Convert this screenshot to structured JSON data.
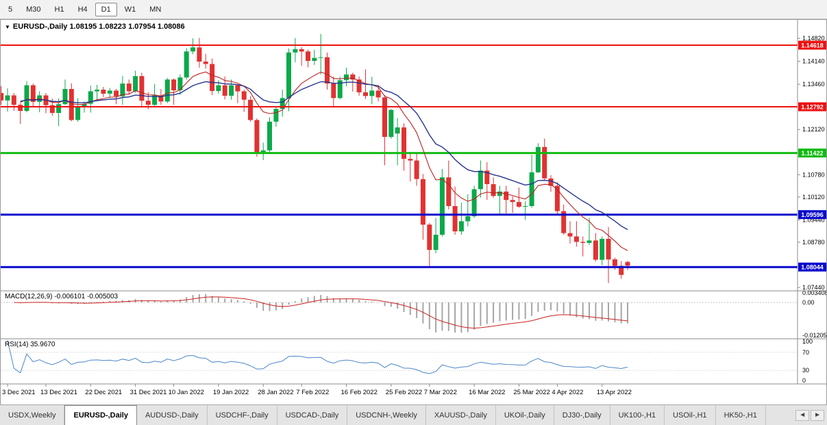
{
  "toolbar": {
    "timeframes": [
      "5",
      "M30",
      "H1",
      "H4",
      "D1",
      "W1",
      "MN"
    ],
    "active": "D1"
  },
  "chart": {
    "title": "EURUSD-,Daily 1.08195 1.08223 1.07954 1.08086",
    "symbol": "EURUSD-,Daily",
    "ohlc_display": {
      "open": "1.08195",
      "high": "1.08223",
      "low": "1.07954",
      "close": "1.08086"
    },
    "price_ticks": [
      "1.14820",
      "1.14140",
      "1.13460",
      "1.12120",
      "1.10780",
      "1.10120",
      "1.09440",
      "1.08780",
      "1.07440"
    ],
    "hlines": [
      {
        "price": 1.14618,
        "label": "1.14618",
        "color": "#ee1111",
        "width": 2
      },
      {
        "price": 1.12792,
        "label": "1.12792",
        "color": "#ee1111",
        "width": 2
      },
      {
        "price": 1.11422,
        "label": "1.11422",
        "color": "#12bb12",
        "width": 3
      },
      {
        "price": 1.09596,
        "label": "1.09596",
        "color": "#0a0acd",
        "width": 3
      },
      {
        "price": 1.08044,
        "label": "1.08044",
        "color": "#0a0acd",
        "width": 3
      }
    ],
    "colors": {
      "up": "#0ba94a",
      "down": "#e03232",
      "ma_fast": "#bb2222",
      "ma_slow": "#26338f"
    }
  },
  "macd": {
    "label": "MACD(12,26,9) -0.006101 -0.005003",
    "name": "MACD",
    "params": "12,26,9",
    "value": "-0.006101",
    "signal_value": "-0.005003",
    "axis_ticks": [
      "0.003408",
      "0.00",
      "-0.012058"
    ],
    "hist_color": "#a6a6a6",
    "signal_color": "#cc2020"
  },
  "rsi": {
    "label": "RSI(14) 35.9670",
    "name": "RSI",
    "params": "14",
    "value": "35.9670",
    "axis_ticks": [
      "100",
      "70",
      "30",
      "0"
    ],
    "levels": [
      70,
      30
    ],
    "color": "#4a86c8"
  },
  "date_labels": [
    [
      "3 Dec 2021",
      1
    ],
    [
      "13 Dec 2021",
      7
    ],
    [
      "22 Dec 2021",
      14
    ],
    [
      "31 Dec 2021",
      21
    ],
    [
      "10 Jan 2022",
      27
    ],
    [
      "19 Jan 2022",
      34
    ],
    [
      "28 Jan 2022",
      41
    ],
    [
      "7 Feb 2022",
      47
    ],
    [
      "16 Feb 2022",
      54
    ],
    [
      "25 Feb 2022",
      61
    ],
    [
      "7 Mar 2022",
      67
    ],
    [
      "16 Mar 2022",
      74
    ],
    [
      "25 Mar 2022",
      81
    ],
    [
      "4 Apr 2022",
      87
    ],
    [
      "13 Apr 2022",
      94
    ]
  ],
  "tabs": {
    "items": [
      "USDX,Weekly",
      "EURUSD-,Daily",
      "AUDUSD-,Daily",
      "USDCHF-,Daily",
      "USDCAD-,Daily",
      "USDCNH-,Weekly",
      "XAUUSD-,Daily",
      "UKOil-,Daily",
      "DJ30-,Daily",
      "UK100-,H1",
      "USOil-,H1",
      "HK50-,H1"
    ],
    "active": "EURUSD-,Daily",
    "scroll_left": "◄",
    "scroll_right": "►"
  },
  "chart_data": {
    "type": "candlestick",
    "symbol": "EURUSD",
    "timeframe": "Daily",
    "moving_averages": [
      {
        "period": 10,
        "color": "#bb2222"
      },
      {
        "period": 21,
        "color": "#26338f"
      }
    ],
    "indicators": [
      {
        "type": "MACD",
        "fast": 12,
        "slow": 26,
        "signal": 9
      },
      {
        "type": "RSI",
        "period": 14
      }
    ],
    "ohlc": [
      [
        "2021-12-02",
        1.132,
        1.134,
        1.1285,
        1.1298
      ],
      [
        "2021-12-03",
        1.1298,
        1.1334,
        1.1265,
        1.1313
      ],
      [
        "2021-12-06",
        1.1313,
        1.132,
        1.1267,
        1.1285
      ],
      [
        "2021-12-07",
        1.1285,
        1.129,
        1.1228,
        1.1267
      ],
      [
        "2021-12-08",
        1.1267,
        1.1355,
        1.1263,
        1.1343
      ],
      [
        "2021-12-09",
        1.1343,
        1.1348,
        1.128,
        1.1294
      ],
      [
        "2021-12-10",
        1.1294,
        1.1325,
        1.1263,
        1.1313
      ],
      [
        "2021-12-13",
        1.1313,
        1.132,
        1.126,
        1.1284
      ],
      [
        "2021-12-14",
        1.1284,
        1.1304,
        1.1253,
        1.1261
      ],
      [
        "2021-12-15",
        1.1261,
        1.1304,
        1.1222,
        1.1287
      ],
      [
        "2021-12-16",
        1.1287,
        1.136,
        1.1285,
        1.1332
      ],
      [
        "2021-12-17",
        1.1332,
        1.1349,
        1.1236,
        1.124
      ],
      [
        "2021-12-20",
        1.124,
        1.1305,
        1.1235,
        1.1278
      ],
      [
        "2021-12-21",
        1.1278,
        1.1295,
        1.1262,
        1.1288
      ],
      [
        "2021-12-22",
        1.1288,
        1.1342,
        1.1262,
        1.1325
      ],
      [
        "2021-12-23",
        1.1325,
        1.1344,
        1.13,
        1.133
      ],
      [
        "2021-12-24",
        1.133,
        1.1338,
        1.1308,
        1.1318
      ],
      [
        "2021-12-27",
        1.1318,
        1.1335,
        1.1305,
        1.1327
      ],
      [
        "2021-12-28",
        1.1327,
        1.1332,
        1.1287,
        1.131
      ],
      [
        "2021-12-29",
        1.131,
        1.137,
        1.1285,
        1.1348
      ],
      [
        "2021-12-30",
        1.1348,
        1.136,
        1.1315,
        1.1325
      ],
      [
        "2021-12-31",
        1.1325,
        1.1386,
        1.132,
        1.137
      ],
      [
        "2022-01-03",
        1.137,
        1.138,
        1.128,
        1.1297
      ],
      [
        "2022-01-04",
        1.1297,
        1.1323,
        1.1272,
        1.1285
      ],
      [
        "2022-01-05",
        1.1285,
        1.1347,
        1.128,
        1.1313
      ],
      [
        "2022-01-06",
        1.1313,
        1.1332,
        1.1285,
        1.1295
      ],
      [
        "2022-01-07",
        1.1295,
        1.1365,
        1.129,
        1.136
      ],
      [
        "2022-01-10",
        1.136,
        1.1363,
        1.1285,
        1.1328
      ],
      [
        "2022-01-11",
        1.1328,
        1.1375,
        1.1315,
        1.1366
      ],
      [
        "2022-01-12",
        1.1366,
        1.1453,
        1.136,
        1.1443
      ],
      [
        "2022-01-13",
        1.1443,
        1.1482,
        1.1435,
        1.1455
      ],
      [
        "2022-01-14",
        1.1455,
        1.1483,
        1.1395,
        1.1413
      ],
      [
        "2022-01-17",
        1.1413,
        1.1436,
        1.1392,
        1.1406
      ],
      [
        "2022-01-18",
        1.1406,
        1.1422,
        1.1314,
        1.1326
      ],
      [
        "2022-01-19",
        1.1326,
        1.1358,
        1.1318,
        1.1343
      ],
      [
        "2022-01-20",
        1.1343,
        1.1369,
        1.1301,
        1.1312
      ],
      [
        "2022-01-21",
        1.1312,
        1.136,
        1.13,
        1.1343
      ],
      [
        "2022-01-24",
        1.1343,
        1.1345,
        1.129,
        1.1325
      ],
      [
        "2022-01-25",
        1.1325,
        1.133,
        1.1264,
        1.13
      ],
      [
        "2022-01-26",
        1.13,
        1.131,
        1.1235,
        1.124
      ],
      [
        "2022-01-27",
        1.124,
        1.1245,
        1.1131,
        1.1145
      ],
      [
        "2022-01-28",
        1.1145,
        1.1173,
        1.1121,
        1.115
      ],
      [
        "2022-01-31",
        1.115,
        1.1248,
        1.114,
        1.1235
      ],
      [
        "2022-02-01",
        1.1235,
        1.1279,
        1.122,
        1.1273
      ],
      [
        "2022-02-02",
        1.1273,
        1.133,
        1.125,
        1.1305
      ],
      [
        "2022-02-03",
        1.1305,
        1.1452,
        1.1266,
        1.144
      ],
      [
        "2022-02-04",
        1.144,
        1.1483,
        1.1411,
        1.145
      ],
      [
        "2022-02-07",
        1.145,
        1.1456,
        1.14,
        1.1443
      ],
      [
        "2022-02-08",
        1.1443,
        1.1448,
        1.1396,
        1.1415
      ],
      [
        "2022-02-09",
        1.1415,
        1.1448,
        1.1403,
        1.1424
      ],
      [
        "2022-02-10",
        1.1424,
        1.1495,
        1.1375,
        1.1426
      ],
      [
        "2022-02-11",
        1.1426,
        1.144,
        1.133,
        1.1348
      ],
      [
        "2022-02-14",
        1.1348,
        1.1369,
        1.1278,
        1.1305
      ],
      [
        "2022-02-15",
        1.1305,
        1.1368,
        1.1301,
        1.1358
      ],
      [
        "2022-02-16",
        1.1358,
        1.1395,
        1.134,
        1.1375
      ],
      [
        "2022-02-17",
        1.1375,
        1.138,
        1.1324,
        1.136
      ],
      [
        "2022-02-18",
        1.136,
        1.1369,
        1.1312,
        1.1322
      ],
      [
        "2022-02-21",
        1.1322,
        1.139,
        1.1302,
        1.1311
      ],
      [
        "2022-02-22",
        1.1311,
        1.1368,
        1.1287,
        1.1327
      ],
      [
        "2022-02-23",
        1.1327,
        1.1343,
        1.1295,
        1.1307
      ],
      [
        "2022-02-24",
        1.1307,
        1.1314,
        1.1106,
        1.119
      ],
      [
        "2022-02-25",
        1.119,
        1.1273,
        1.1185,
        1.127
      ],
      [
        "2022-02-28",
        1.12,
        1.1246,
        1.1106,
        1.1218
      ],
      [
        "2022-03-01",
        1.1218,
        1.123,
        1.109,
        1.1125
      ],
      [
        "2022-03-02",
        1.1125,
        1.1145,
        1.1058,
        1.112
      ],
      [
        "2022-03-03",
        1.112,
        1.114,
        1.1045,
        1.1065
      ],
      [
        "2022-03-04",
        1.1065,
        1.108,
        1.0885,
        1.093
      ],
      [
        "2022-03-07",
        1.093,
        1.0935,
        1.0806,
        1.0855
      ],
      [
        "2022-03-08",
        1.0855,
        1.095,
        1.0845,
        1.09
      ],
      [
        "2022-03-09",
        1.09,
        1.1095,
        1.0895,
        1.107
      ],
      [
        "2022-03-10",
        1.107,
        1.112,
        1.0975,
        1.0985
      ],
      [
        "2022-03-11",
        1.0985,
        1.1043,
        1.09,
        1.091
      ],
      [
        "2022-03-14",
        1.091,
        1.0995,
        1.09,
        1.094
      ],
      [
        "2022-03-15",
        1.094,
        1.102,
        1.0925,
        1.0955
      ],
      [
        "2022-03-16",
        1.0955,
        1.1045,
        1.095,
        1.1035
      ],
      [
        "2022-03-17",
        1.1035,
        1.112,
        1.101,
        1.109
      ],
      [
        "2022-03-18",
        1.109,
        1.1115,
        1.1003,
        1.105
      ],
      [
        "2022-03-21",
        1.105,
        1.107,
        1.101,
        1.1015
      ],
      [
        "2022-03-22",
        1.1015,
        1.1045,
        1.096,
        1.1028
      ],
      [
        "2022-03-23",
        1.1028,
        1.1045,
        1.0963,
        1.1003
      ],
      [
        "2022-03-24",
        1.1003,
        1.1014,
        1.0965,
        1.0997
      ],
      [
        "2022-03-25",
        1.0997,
        1.104,
        1.098,
        1.0983
      ],
      [
        "2022-03-28",
        1.0983,
        1.0999,
        1.0944,
        1.0985
      ],
      [
        "2022-03-29",
        1.0985,
        1.1137,
        1.098,
        1.1085
      ],
      [
        "2022-03-30",
        1.1085,
        1.1171,
        1.1083,
        1.116
      ],
      [
        "2022-03-31",
        1.116,
        1.1185,
        1.106,
        1.1067
      ],
      [
        "2022-04-01",
        1.1067,
        1.1077,
        1.1027,
        1.1045
      ],
      [
        "2022-04-04",
        1.1045,
        1.1055,
        1.096,
        1.097
      ],
      [
        "2022-04-05",
        1.097,
        1.099,
        1.09,
        1.0905
      ],
      [
        "2022-04-06",
        1.0905,
        1.094,
        1.0874,
        1.0895
      ],
      [
        "2022-04-07",
        1.0895,
        1.094,
        1.0865,
        1.0879
      ],
      [
        "2022-04-08",
        1.0879,
        1.0895,
        1.0836,
        1.0876
      ],
      [
        "2022-04-11",
        1.0876,
        1.095,
        1.087,
        1.0883
      ],
      [
        "2022-04-12",
        1.0883,
        1.0905,
        1.0821,
        1.0826
      ],
      [
        "2022-04-13",
        1.0826,
        1.0895,
        1.081,
        1.0888
      ],
      [
        "2022-04-14",
        1.0888,
        1.0923,
        1.0757,
        1.0827
      ],
      [
        "2022-04-15",
        1.0827,
        1.0832,
        1.0796,
        1.0808
      ],
      [
        "2022-04-18",
        1.0808,
        1.0822,
        1.077,
        1.0781
      ],
      [
        "2022-04-19",
        1.08195,
        1.08223,
        1.07954,
        1.08086
      ]
    ]
  }
}
